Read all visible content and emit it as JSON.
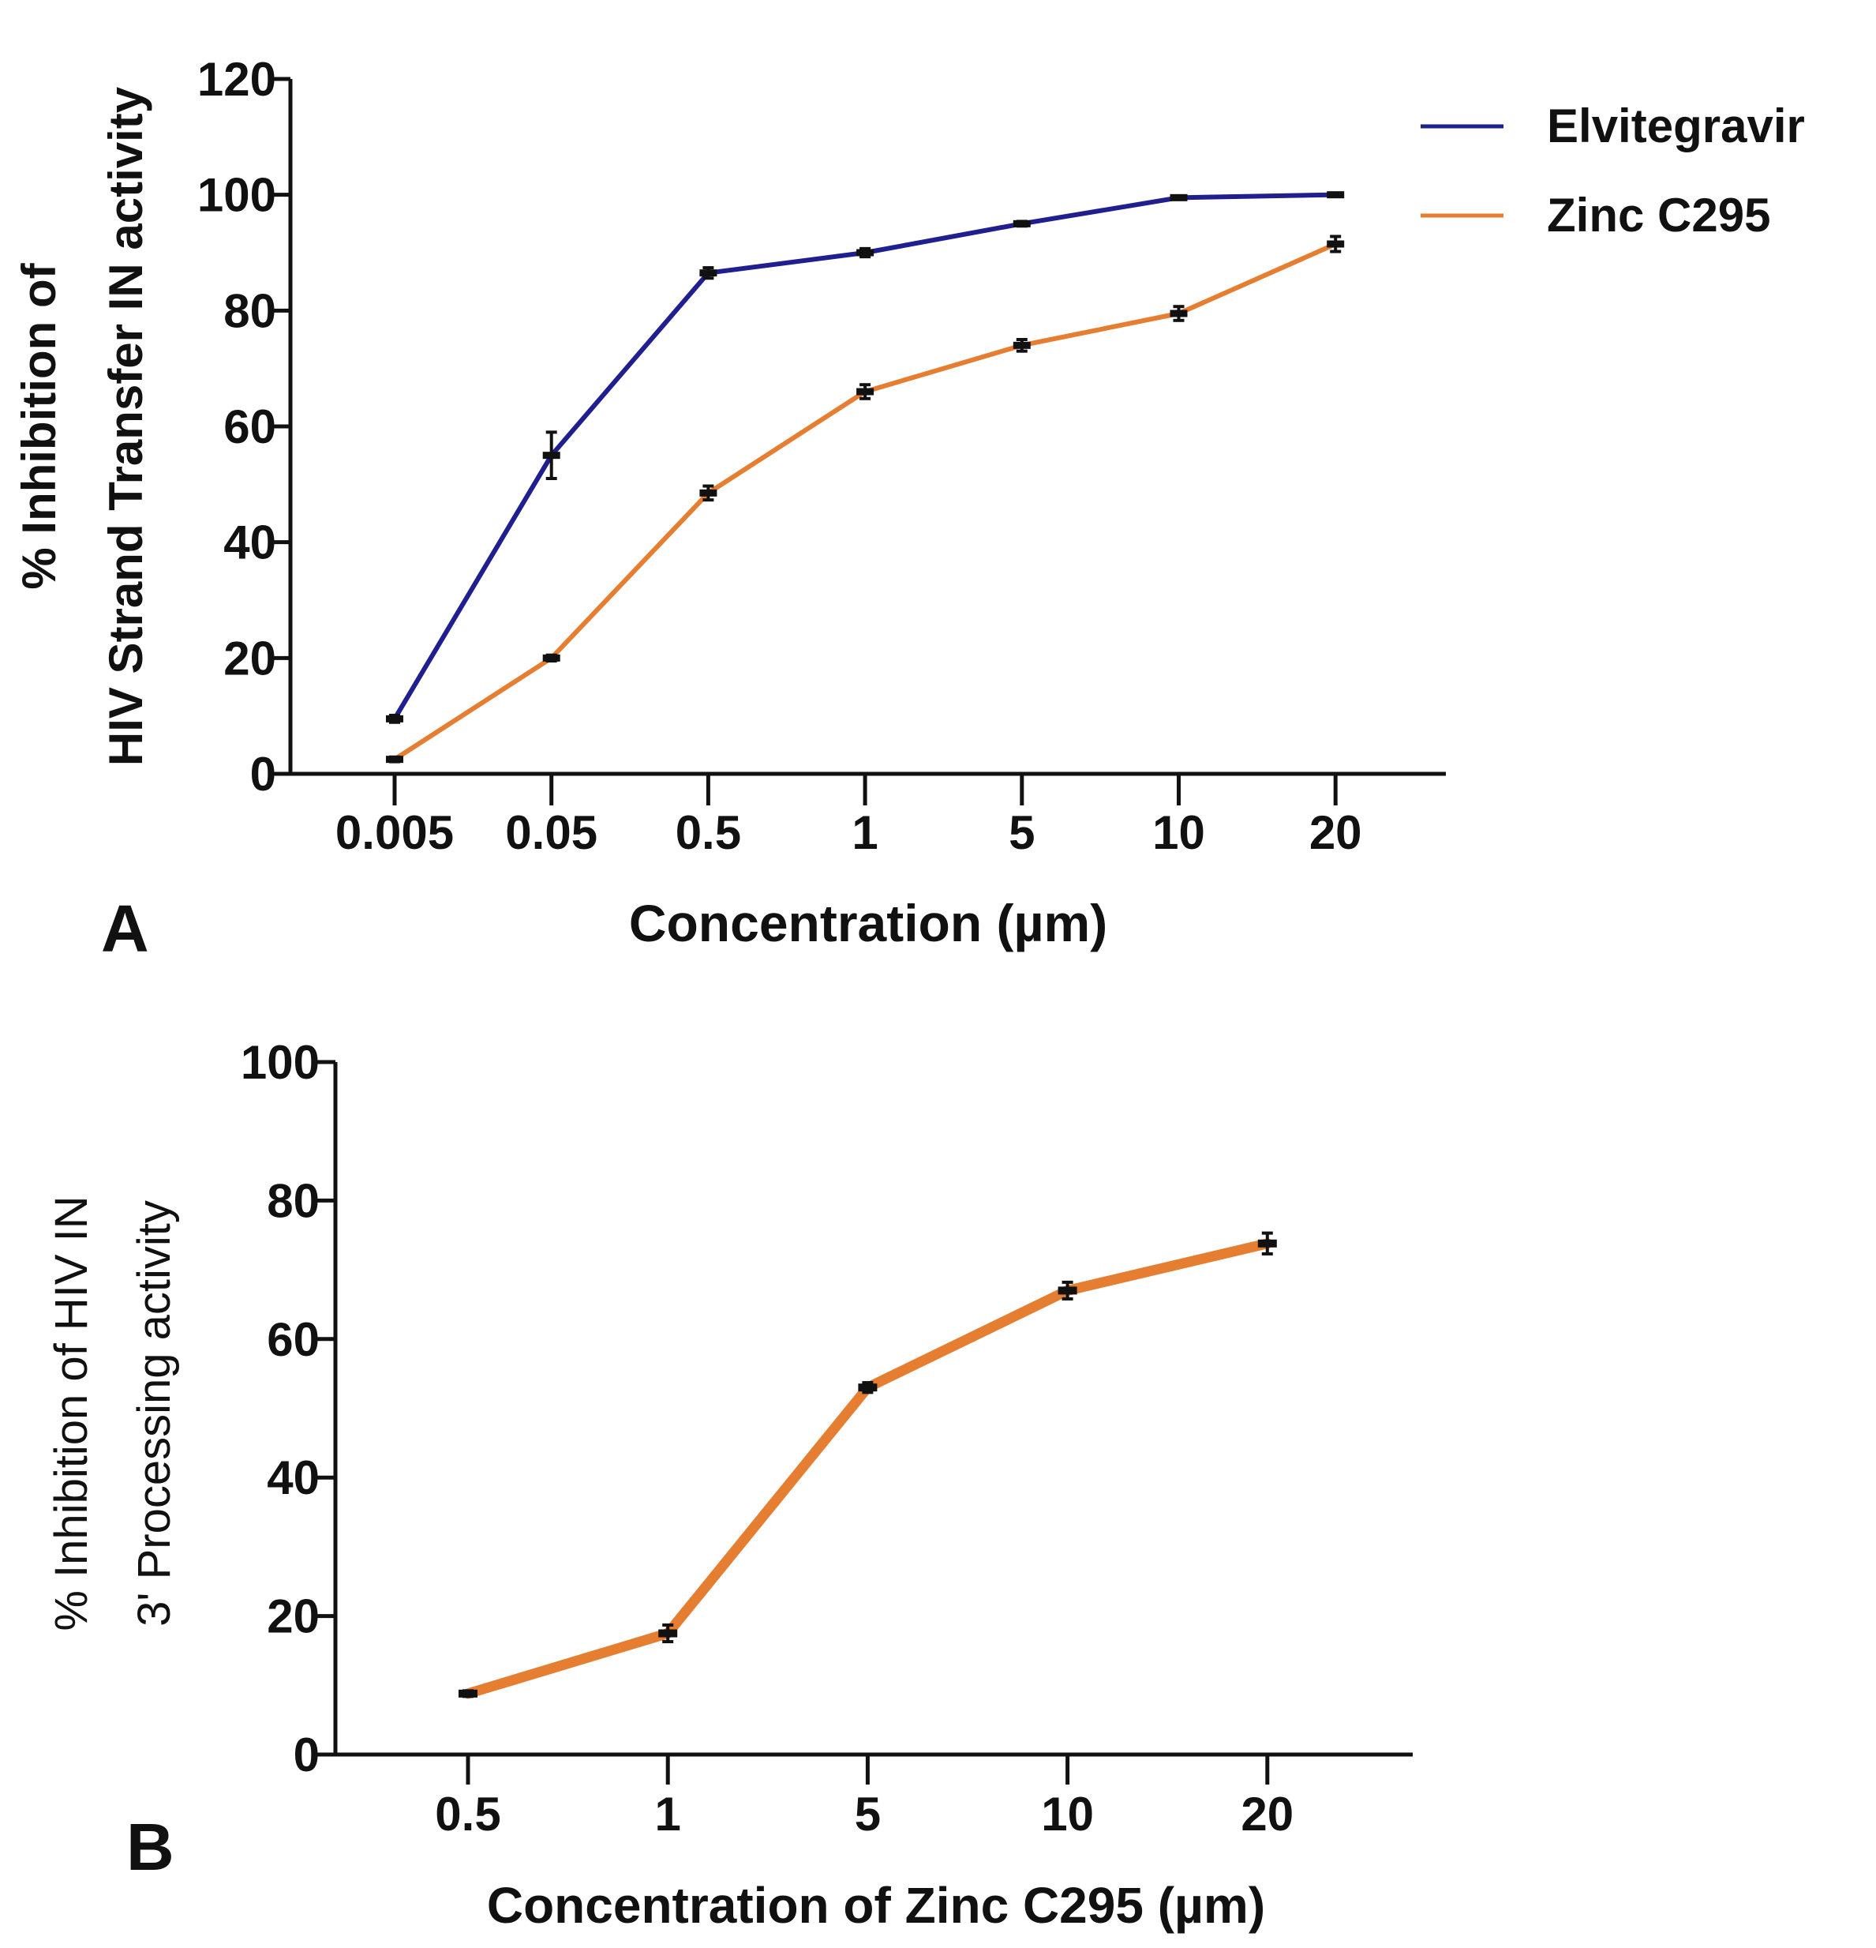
{
  "chart_data": [
    {
      "panel": "A",
      "type": "line",
      "xlabel": "Concentration (µm)",
      "ylabel_lines": [
        "% Inhibition of",
        "HIV Strand Transfer IN activity"
      ],
      "categories": [
        "0.005",
        "0.05",
        "0.5",
        "1",
        "5",
        "10",
        "20"
      ],
      "ylim": [
        0,
        120
      ],
      "yticks": [
        "0",
        "20",
        "40",
        "60",
        "80",
        "100",
        "120"
      ],
      "legend_position": "top-right",
      "series": [
        {
          "name": "Elvitegravir",
          "color": "#1f1f8f",
          "values": [
            9.5,
            55,
            86.5,
            90,
            95,
            99.5,
            100
          ],
          "errors": [
            0.6,
            4,
            0.9,
            0.7,
            0.4,
            0.3,
            0.2
          ]
        },
        {
          "name": "Zinc C295",
          "color": "#e67e32",
          "values": [
            2.5,
            20,
            48.5,
            66,
            74,
            79.5,
            91.5
          ],
          "errors": [
            0.4,
            0.5,
            1.2,
            1.2,
            1.0,
            1.2,
            1.3
          ]
        }
      ]
    },
    {
      "panel": "B",
      "type": "line",
      "xlabel": "Concentration of Zinc C295 (µm)",
      "ylabel_lines": [
        "% Inhibition of HIV IN",
        "3' Processing  activity"
      ],
      "categories": [
        "0.5",
        "1",
        "5",
        "10",
        "20"
      ],
      "ylim": [
        0,
        100
      ],
      "yticks": [
        "0",
        "20",
        "40",
        "60",
        "80",
        "100"
      ],
      "series": [
        {
          "name": "Zinc C295",
          "color": "#e67e32",
          "values": [
            8.8,
            17.5,
            53,
            67,
            73.8
          ],
          "errors": [
            0.4,
            1.2,
            0.7,
            1.2,
            1.5
          ]
        }
      ]
    }
  ]
}
